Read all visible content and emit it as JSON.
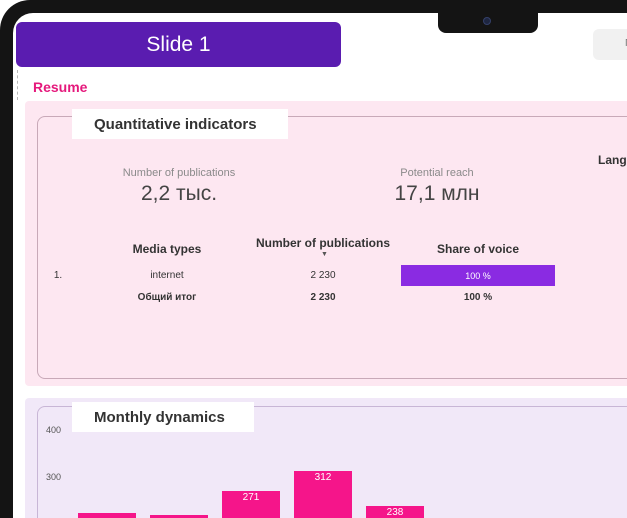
{
  "slide": {
    "title": "Slide 1"
  },
  "resume": {
    "heading": "Resume"
  },
  "quantitative": {
    "heading": "Quantitative indicators",
    "publications": {
      "label": "Number of publications",
      "value": "2,2 тыс."
    },
    "reach": {
      "label": "Potential reach",
      "value": "17,1 млн"
    },
    "lang_label": "Lang",
    "table": {
      "headers": [
        "Media types",
        "Number of publications",
        "Share of voice"
      ],
      "rows": [
        {
          "index": "1.",
          "media": "internet",
          "publications": "2 230",
          "share": "100 %",
          "share_fraction": 1.0
        }
      ],
      "total": {
        "label": "Общий итог",
        "publications": "2 230",
        "share": "100 %"
      }
    }
  },
  "monthly": {
    "heading": "Monthly dynamics",
    "y_ticks": [
      "400",
      "300"
    ]
  },
  "chart_data": {
    "type": "bar",
    "title": "Monthly dynamics",
    "ylim": [
      200,
      400
    ],
    "y_ticks": [
      300,
      400
    ],
    "values": [
      null,
      null,
      271,
      312,
      238
    ],
    "labels": [
      "",
      "",
      "271",
      "312",
      "238"
    ],
    "color": "#f5158a"
  },
  "colors": {
    "title_bar": "#5a1cb0",
    "accent_pink": "#e5197c",
    "share_bar": "#8a2be2",
    "bars": "#f5158a"
  },
  "icons": {
    "camera": "camera-icon",
    "sort": "sort-descending-icon"
  }
}
